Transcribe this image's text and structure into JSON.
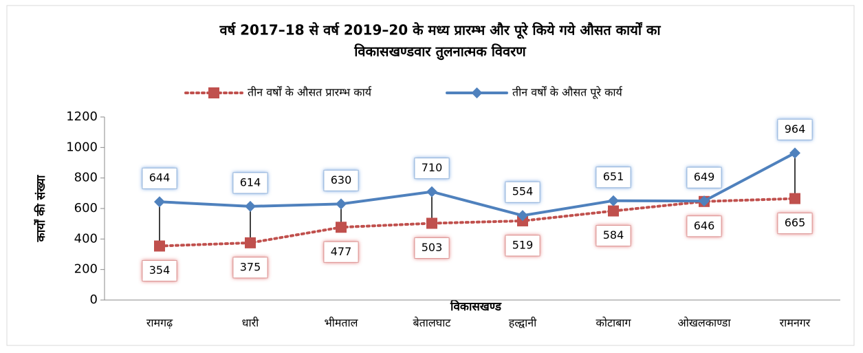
{
  "chart_data": {
    "type": "line",
    "title": [
      "वर्ष 2017–18 से वर्ष 2019–20 के मध्य प्रारम्भ और पूरे किये गये औसत कार्यों का",
      "विकासखण्डवार तुलनात्मक विवरण"
    ],
    "x_label": "विकासखण्ड",
    "y_label": "कार्यों की संख्या",
    "categories": [
      "रामगढ़",
      "धारी",
      "भीमताल",
      "बेतालघाट",
      "हल्द्वानी",
      "कोटाबाग",
      "ओखलकाण्डा",
      "रामनगर"
    ],
    "series": [
      {
        "name": "तीन वर्षों के औसत प्रारम्भ कार्य",
        "color": "#c0504d",
        "values": [
          354,
          375,
          477,
          503,
          519,
          584,
          646,
          665
        ]
      },
      {
        "name": "तीन वर्षों के औसत पूरे कार्य",
        "color": "#4f81bd",
        "values": [
          644,
          614,
          630,
          710,
          554,
          651,
          649,
          964
        ]
      }
    ],
    "ylim": [
      0,
      1200
    ],
    "yticks": [
      0,
      200,
      400,
      600,
      800,
      1000,
      1200
    ],
    "legend": "top"
  }
}
